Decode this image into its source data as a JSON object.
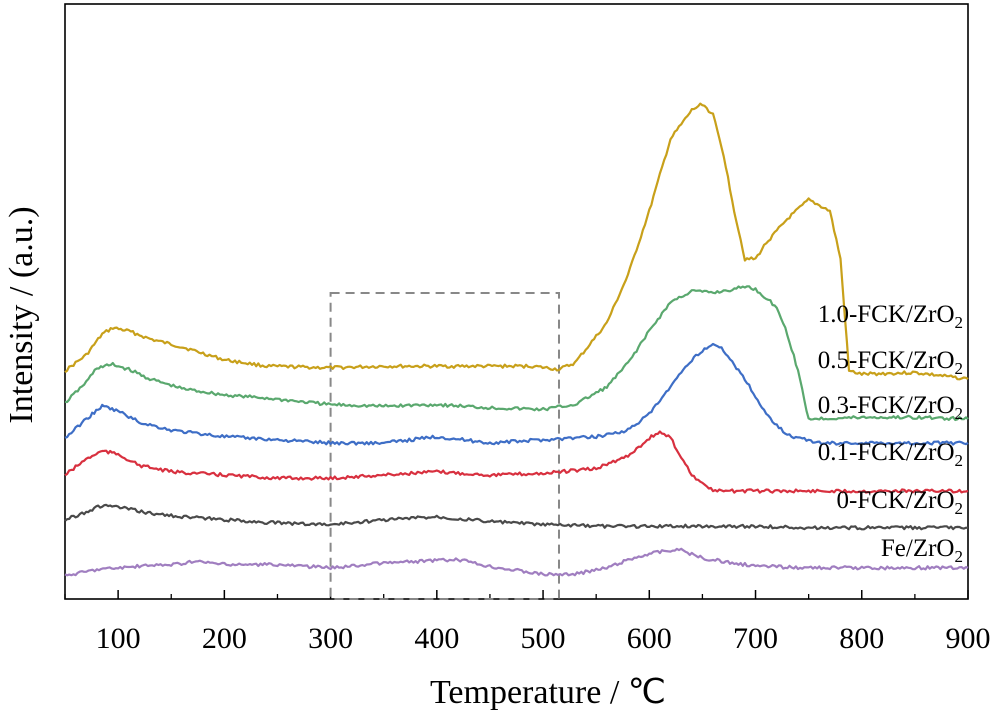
{
  "chart_data": {
    "type": "line",
    "xlabel": "Temperature / ℃",
    "ylabel": "Intensity / (a.u.)",
    "xlim": [
      50,
      900
    ],
    "xticks": [
      100,
      200,
      300,
      400,
      500,
      600,
      700,
      800,
      900
    ],
    "y_ticks_shown": false,
    "grid": false,
    "legend": "labels placed at right end of each curve",
    "highlight_box": {
      "x_range": [
        300,
        515
      ],
      "style": "dashed",
      "color": "#888888"
    },
    "series": [
      {
        "name": "1.0-FCK/ZrO2",
        "label_text": "1.0-FCK/ZrO",
        "label_sub": "2",
        "color": "#c8a01a",
        "x": [
          50,
          70,
          85,
          95,
          110,
          130,
          160,
          200,
          240,
          300,
          350,
          400,
          450,
          490,
          515,
          530,
          560,
          580,
          600,
          620,
          640,
          650,
          660,
          670,
          680,
          690,
          700,
          710,
          730,
          750,
          770,
          780,
          788,
          800,
          850,
          900
        ],
        "y": [
          1.45,
          1.55,
          1.68,
          1.72,
          1.7,
          1.65,
          1.6,
          1.52,
          1.48,
          1.47,
          1.48,
          1.48,
          1.48,
          1.48,
          1.46,
          1.5,
          1.75,
          2.05,
          2.45,
          2.9,
          3.08,
          3.12,
          3.05,
          2.8,
          2.45,
          2.15,
          2.15,
          2.25,
          2.4,
          2.52,
          2.45,
          2.15,
          1.45,
          1.43,
          1.44,
          1.4
        ]
      },
      {
        "name": "0.5-FCK/ZrO2",
        "label_text": "0.5-FCK/ZrO",
        "label_sub": "2",
        "color": "#5aa86e",
        "x": [
          50,
          70,
          80,
          95,
          110,
          130,
          160,
          200,
          240,
          300,
          350,
          400,
          450,
          500,
          530,
          560,
          580,
          600,
          620,
          640,
          660,
          680,
          690,
          700,
          720,
          730,
          740,
          750,
          800,
          850,
          900
        ],
        "y": [
          1.25,
          1.38,
          1.47,
          1.49,
          1.46,
          1.4,
          1.34,
          1.3,
          1.28,
          1.24,
          1.23,
          1.24,
          1.22,
          1.21,
          1.24,
          1.35,
          1.5,
          1.7,
          1.88,
          1.95,
          1.94,
          1.96,
          1.98,
          1.96,
          1.85,
          1.68,
          1.45,
          1.15,
          1.16,
          1.16,
          1.15
        ]
      },
      {
        "name": "0.3-FCK/ZrO2",
        "label_text": "0.3-FCK/ZrO",
        "label_sub": "2",
        "color": "#3e6ec6",
        "x": [
          50,
          70,
          85,
          100,
          120,
          150,
          200,
          250,
          300,
          350,
          400,
          450,
          500,
          550,
          580,
          600,
          620,
          640,
          650,
          660,
          670,
          690,
          710,
          730,
          760,
          800,
          850,
          900
        ],
        "y": [
          1.03,
          1.15,
          1.23,
          1.2,
          1.13,
          1.08,
          1.04,
          1.02,
          1.0,
          1.0,
          1.04,
          1.0,
          1.02,
          1.04,
          1.08,
          1.18,
          1.35,
          1.52,
          1.58,
          1.62,
          1.58,
          1.4,
          1.18,
          1.05,
          1.0,
          1.0,
          1.0,
          1.0
        ]
      },
      {
        "name": "0.1-FCK/ZrO2",
        "label_text": "0.1-FCK/ZrO",
        "label_sub": "2",
        "color": "#d8303f",
        "x": [
          50,
          70,
          85,
          100,
          120,
          150,
          200,
          250,
          300,
          350,
          400,
          450,
          500,
          550,
          580,
          600,
          610,
          620,
          640,
          660,
          700,
          750,
          800,
          850,
          900
        ],
        "y": [
          0.8,
          0.9,
          0.95,
          0.93,
          0.86,
          0.82,
          0.8,
          0.78,
          0.78,
          0.8,
          0.82,
          0.8,
          0.81,
          0.84,
          0.92,
          1.03,
          1.07,
          1.03,
          0.8,
          0.7,
          0.7,
          0.7,
          0.7,
          0.7,
          0.7
        ]
      },
      {
        "name": "0-FCK/ZrO2",
        "label_text": "0-FCK/ZrO",
        "label_sub": "2",
        "color": "#4a4a4a",
        "x": [
          50,
          70,
          85,
          100,
          130,
          160,
          200,
          250,
          300,
          350,
          400,
          450,
          500,
          550,
          600,
          650,
          700,
          750,
          800,
          850,
          900
        ],
        "y": [
          0.52,
          0.57,
          0.61,
          0.6,
          0.56,
          0.54,
          0.52,
          0.5,
          0.49,
          0.52,
          0.54,
          0.51,
          0.49,
          0.48,
          0.48,
          0.48,
          0.48,
          0.47,
          0.47,
          0.47,
          0.47
        ]
      },
      {
        "name": "Fe/ZrO2",
        "label_text": "Fe/ZrO",
        "label_sub": "2",
        "color": "#a07ec0",
        "x": [
          50,
          80,
          120,
          150,
          175,
          200,
          250,
          300,
          350,
          380,
          420,
          450,
          480,
          500,
          530,
          560,
          580,
          600,
          620,
          630,
          650,
          700,
          750,
          800,
          850,
          900
        ],
        "y": [
          0.17,
          0.21,
          0.23,
          0.24,
          0.26,
          0.24,
          0.24,
          0.22,
          0.25,
          0.26,
          0.27,
          0.23,
          0.2,
          0.18,
          0.18,
          0.22,
          0.27,
          0.31,
          0.33,
          0.33,
          0.28,
          0.23,
          0.22,
          0.22,
          0.22,
          0.22
        ]
      }
    ]
  }
}
